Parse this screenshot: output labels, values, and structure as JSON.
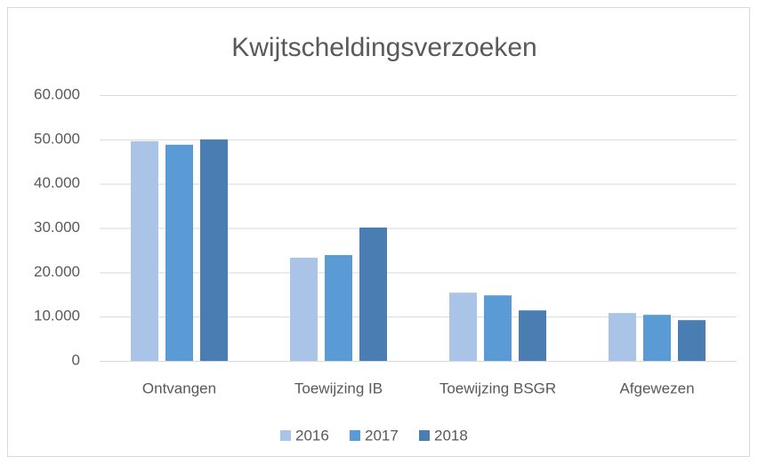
{
  "chart_data": {
    "type": "bar",
    "title": "Kwijtscheldingsverzoeken",
    "categories": [
      "Ontvangen",
      "Toewijzing IB",
      "Toewijzing BSGR",
      "Afgewezen"
    ],
    "series": [
      {
        "name": "2016",
        "color": "#a9c4e6",
        "values": [
          49600,
          23300,
          15400,
          10800
        ]
      },
      {
        "name": "2017",
        "color": "#5b9bd5",
        "values": [
          48800,
          23900,
          14800,
          10400
        ]
      },
      {
        "name": "2018",
        "color": "#4a7eb3",
        "values": [
          50000,
          30100,
          11400,
          9200
        ]
      }
    ],
    "ylim": [
      0,
      60000
    ],
    "yticks": [
      0,
      {
        "value": 10000,
        "label": "10.000"
      },
      {
        "value": 20000,
        "label": "20.000"
      },
      {
        "value": 30000,
        "label": "30.000"
      },
      {
        "value": 40000,
        "label": "40.000"
      },
      {
        "value": 50000,
        "label": "50.000"
      },
      {
        "value": 60000,
        "label": "60.000"
      }
    ],
    "grid": true,
    "legend": "bottom"
  }
}
